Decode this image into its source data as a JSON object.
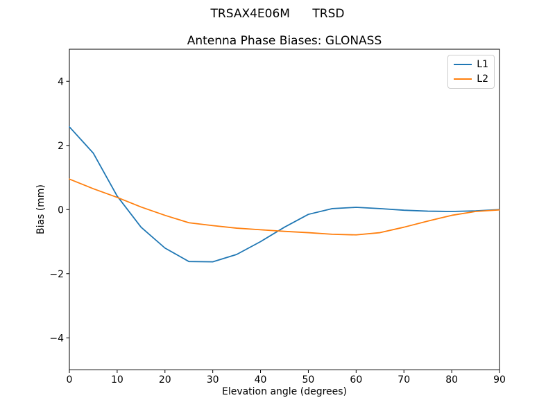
{
  "header": {
    "suptitle": "TRSAX4E06M      TRSD"
  },
  "chart_data": {
    "type": "line",
    "title": "Antenna Phase Biases: GLONASS",
    "xlabel": "Elevation angle (degrees)",
    "ylabel": "Bias (mm)",
    "xlim": [
      0,
      90
    ],
    "ylim": [
      -5,
      5
    ],
    "xticks": [
      0,
      10,
      20,
      30,
      40,
      50,
      60,
      70,
      80,
      90
    ],
    "yticks": [
      -4,
      -2,
      0,
      2,
      4
    ],
    "grid": false,
    "legend_position": "upper right",
    "x": [
      0,
      5,
      10,
      15,
      20,
      25,
      30,
      35,
      40,
      45,
      50,
      55,
      60,
      65,
      70,
      75,
      80,
      85,
      90
    ],
    "series": [
      {
        "name": "L1",
        "color": "#1f77b4",
        "values": [
          2.58,
          1.76,
          0.42,
          -0.55,
          -1.2,
          -1.62,
          -1.63,
          -1.4,
          -1.0,
          -0.55,
          -0.15,
          0.03,
          0.07,
          0.03,
          -0.02,
          -0.05,
          -0.06,
          -0.04,
          0.0
        ]
      },
      {
        "name": "L2",
        "color": "#ff7f0e",
        "values": [
          0.95,
          0.65,
          0.38,
          0.08,
          -0.18,
          -0.41,
          -0.5,
          -0.58,
          -0.63,
          -0.68,
          -0.72,
          -0.77,
          -0.79,
          -0.72,
          -0.55,
          -0.36,
          -0.18,
          -0.06,
          -0.01
        ]
      }
    ],
    "axis_color": "#000000",
    "background": "#ffffff"
  }
}
